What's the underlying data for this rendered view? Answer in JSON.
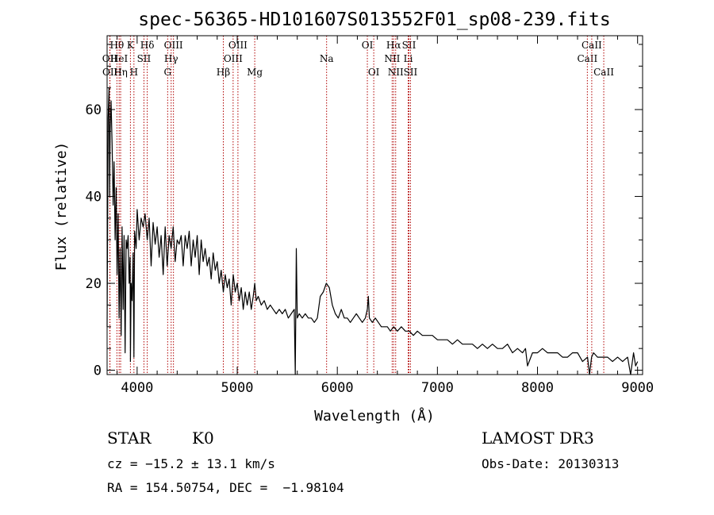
{
  "chart_data": {
    "type": "line",
    "title": "spec-56365-HD101607S013552F01_sp08-239.fits",
    "xlabel": "Wavelength (Å)",
    "ylabel": "Flux (relative)",
    "xlim": [
      3700,
      9050
    ],
    "ylim": [
      -1,
      77
    ],
    "xticks": [
      4000,
      5000,
      6000,
      7000,
      8000,
      9000
    ],
    "yticks": [
      0,
      20,
      40,
      60
    ],
    "grid": false,
    "series": [
      {
        "name": "flux",
        "x": [
          3700,
          3710,
          3720,
          3725,
          3730,
          3740,
          3750,
          3760,
          3770,
          3780,
          3790,
          3800,
          3810,
          3820,
          3830,
          3840,
          3850,
          3860,
          3870,
          3880,
          3890,
          3900,
          3910,
          3920,
          3930,
          3933,
          3940,
          3950,
          3960,
          3968,
          3975,
          3990,
          4000,
          4020,
          4040,
          4060,
          4080,
          4101,
          4120,
          4140,
          4160,
          4180,
          4200,
          4220,
          4240,
          4260,
          4280,
          4300,
          4320,
          4340,
          4360,
          4380,
          4400,
          4420,
          4440,
          4460,
          4480,
          4500,
          4520,
          4540,
          4560,
          4580,
          4600,
          4620,
          4640,
          4660,
          4680,
          4700,
          4720,
          4740,
          4760,
          4780,
          4800,
          4820,
          4840,
          4861,
          4880,
          4900,
          4920,
          4940,
          4960,
          4980,
          5000,
          5020,
          5040,
          5060,
          5080,
          5100,
          5120,
          5140,
          5160,
          5175,
          5190,
          5210,
          5240,
          5270,
          5300,
          5330,
          5360,
          5390,
          5420,
          5450,
          5480,
          5510,
          5540,
          5570,
          5580,
          5590,
          5600,
          5620,
          5650,
          5680,
          5710,
          5740,
          5770,
          5800,
          5830,
          5860,
          5890,
          5920,
          5950,
          5980,
          6010,
          6040,
          6070,
          6100,
          6130,
          6160,
          6190,
          6220,
          6250,
          6280,
          6300,
          6310,
          6320,
          6350,
          6380,
          6410,
          6440,
          6470,
          6500,
          6530,
          6563,
          6600,
          6640,
          6680,
          6720,
          6760,
          6800,
          6850,
          6900,
          6950,
          7000,
          7050,
          7100,
          7150,
          7200,
          7250,
          7300,
          7350,
          7400,
          7450,
          7500,
          7550,
          7600,
          7650,
          7700,
          7750,
          7800,
          7850,
          7880,
          7900,
          7950,
          8000,
          8050,
          8100,
          8150,
          8200,
          8250,
          8300,
          8350,
          8400,
          8450,
          8500,
          8520,
          8540,
          8560,
          8600,
          8650,
          8700,
          8750,
          8800,
          8850,
          8900,
          8930,
          8960,
          8980,
          9000
        ],
        "values": [
          10,
          58,
          65,
          40,
          55,
          62,
          52,
          38,
          48,
          30,
          42,
          22,
          36,
          12,
          28,
          8,
          33,
          14,
          31,
          4,
          30,
          28,
          31,
          20,
          26,
          2,
          20,
          16,
          27,
          3,
          32,
          28,
          37,
          30,
          35,
          33,
          36,
          30,
          35,
          24,
          34,
          29,
          33,
          26,
          31,
          22,
          33,
          24,
          31,
          28,
          33,
          25,
          30,
          29,
          31,
          24,
          31,
          28,
          32,
          24,
          30,
          26,
          31,
          22,
          30,
          25,
          28,
          24,
          26,
          21,
          27,
          23,
          25,
          20,
          23,
          18,
          22,
          19,
          21,
          15,
          22,
          18,
          20,
          16,
          19,
          14,
          18,
          15,
          18,
          14,
          17,
          20,
          16,
          17,
          15,
          16,
          14,
          15,
          14,
          13,
          14,
          13,
          14,
          12,
          13,
          14,
          -1,
          28,
          12,
          13,
          12,
          13,
          12,
          12,
          11,
          12,
          17,
          18,
          20,
          19,
          15,
          13,
          12,
          14,
          12,
          12,
          11,
          12,
          13,
          12,
          11,
          12,
          14,
          17,
          12,
          11,
          12,
          11,
          10,
          10,
          10,
          9,
          10,
          9,
          10,
          9,
          9,
          8,
          9,
          8,
          8,
          8,
          7,
          7,
          7,
          6,
          7,
          6,
          6,
          6,
          5,
          6,
          5,
          6,
          5,
          5,
          6,
          4,
          5,
          4,
          5,
          1,
          4,
          4,
          5,
          4,
          4,
          4,
          3,
          3,
          4,
          4,
          2,
          3,
          -1,
          3,
          4,
          3,
          3,
          3,
          2,
          3,
          2,
          3,
          -1,
          4,
          1,
          2
        ]
      }
    ],
    "lines": [
      {
        "label": "Hθ",
        "wl": 3798,
        "row": 1
      },
      {
        "label": "OII",
        "wl": 3727,
        "row": 2
      },
      {
        "label": "OII",
        "wl": 3729,
        "row": 3
      },
      {
        "label": "HeI",
        "wl": 3820,
        "row": 2
      },
      {
        "label": "Hη",
        "wl": 3835,
        "row": 3
      },
      {
        "label": "K",
        "wl": 3933,
        "row": 1
      },
      {
        "label": "H",
        "wl": 3968,
        "row": 3
      },
      {
        "label": "SII",
        "wl": 4068,
        "row": 2
      },
      {
        "label": "Hδ",
        "wl": 4101,
        "row": 1
      },
      {
        "label": "OIII",
        "wl": 4363,
        "row": 1
      },
      {
        "label": "Hγ",
        "wl": 4340,
        "row": 2
      },
      {
        "label": "G",
        "wl": 4305,
        "row": 3
      },
      {
        "label": "Hβ",
        "wl": 4861,
        "row": 3
      },
      {
        "label": "OIII",
        "wl": 4959,
        "row": 2
      },
      {
        "label": "OIII",
        "wl": 5007,
        "row": 1
      },
      {
        "label": "Mg",
        "wl": 5175,
        "row": 3
      },
      {
        "label": "Na",
        "wl": 5893,
        "row": 2
      },
      {
        "label": "OI",
        "wl": 6300,
        "row": 1
      },
      {
        "label": "OI",
        "wl": 6364,
        "row": 3
      },
      {
        "label": "NII",
        "wl": 6548,
        "row": 2
      },
      {
        "label": "Hα",
        "wl": 6563,
        "row": 1
      },
      {
        "label": "NII",
        "wl": 6583,
        "row": 3
      },
      {
        "label": "Li",
        "wl": 6708,
        "row": 2
      },
      {
        "label": "SII",
        "wl": 6716,
        "row": 1
      },
      {
        "label": "SII",
        "wl": 6731,
        "row": 3
      },
      {
        "label": "CaII",
        "wl": 8498,
        "row": 2
      },
      {
        "label": "CaII",
        "wl": 8542,
        "row": 1
      },
      {
        "label": "CaII",
        "wl": 8662,
        "row": 3
      }
    ]
  },
  "info": {
    "obj_class": "STAR",
    "subclass": "K0",
    "redshift": "cz = −15.2 ± 13.1 km/s",
    "coords": "RA = 154.50754, DEC =  −1.98104",
    "survey": "LAMOST DR3",
    "obs_date": "Obs-Date: 20130313"
  }
}
